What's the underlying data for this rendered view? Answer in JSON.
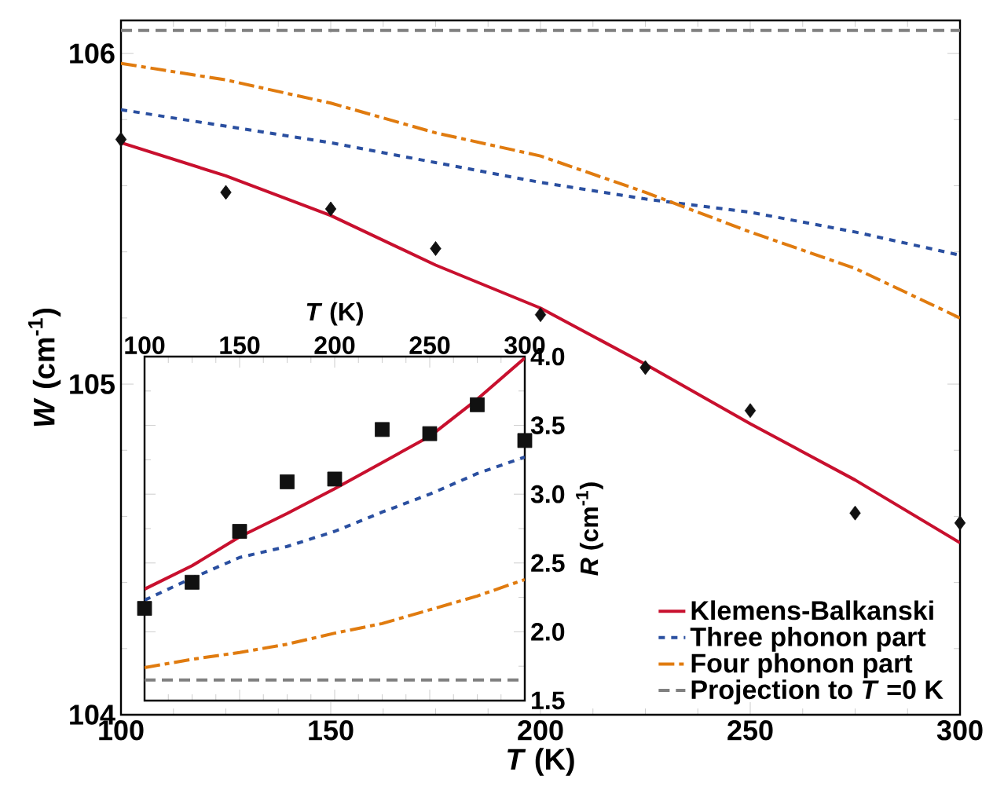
{
  "chart_data": [
    {
      "type": "line",
      "xlabel": "*T* (K)",
      "ylabel": "*W* (cm$^{-1}$)",
      "x": [
        100,
        125,
        150,
        175,
        200,
        225,
        250,
        275,
        300
      ],
      "xlim": [
        100,
        300
      ],
      "xticks": [
        100,
        150,
        200,
        250,
        300
      ],
      "ylim": [
        104,
        106.1
      ],
      "yticks": [
        104,
        105,
        106
      ],
      "legend": "bottom right",
      "grid": false,
      "series": [
        {
          "type": "scatter",
          "marker": "diamond",
          "color": "#111111",
          "values": [
            105.74,
            105.58,
            105.53,
            105.41,
            105.21,
            105.05,
            104.92,
            104.61,
            104.58
          ]
        },
        {
          "name": "Klemens-Balkanski",
          "color": "#c8102e",
          "line_style": "solid",
          "values": [
            105.73,
            105.63,
            105.51,
            105.36,
            105.23,
            105.06,
            104.88,
            104.71,
            104.52
          ]
        },
        {
          "name": "Three phonon part",
          "color": "#2a4fa0",
          "line_style": "dotted",
          "values": [
            105.83,
            105.78,
            105.73,
            105.67,
            105.61,
            105.56,
            105.52,
            105.46,
            105.39
          ]
        },
        {
          "name": "Four phonon part",
          "color": "#e07b0f",
          "line_style": "dashdot",
          "values": [
            105.97,
            105.92,
            105.85,
            105.76,
            105.69,
            105.58,
            105.46,
            105.35,
            105.2
          ]
        },
        {
          "name": "Projection to *T* =0 K",
          "color": "#808080",
          "line_style": "dashed",
          "values": [
            106.07,
            106.07,
            106.07,
            106.07,
            106.07,
            106.07,
            106.07,
            106.07,
            106.07
          ]
        }
      ]
    },
    {
      "type": "line",
      "xlabel": "*T* (K)",
      "ylabel": "*R* (cm$^{-1}$)",
      "x": [
        100,
        125,
        150,
        175,
        200,
        225,
        250,
        275,
        300
      ],
      "xlim": [
        100,
        300
      ],
      "xticks": [
        100,
        150,
        200,
        250,
        300
      ],
      "ylim": [
        1.5,
        4.0
      ],
      "yticks": [
        {
          "value": 1.5,
          "label": "1.5"
        },
        {
          "value": 2.0,
          "label": "2.0"
        },
        {
          "value": 2.5,
          "label": "2.5"
        },
        {
          "value": 3.0,
          "label": "3.0"
        },
        {
          "value": 3.5,
          "label": "3.5"
        },
        {
          "value": 4.0,
          "label": "4.0"
        }
      ],
      "legend": false,
      "grid": false,
      "series": [
        {
          "type": "scatter",
          "marker": "square",
          "color": "#111111",
          "values": [
            2.17,
            2.36,
            2.73,
            3.09,
            3.11,
            3.47,
            3.44,
            3.65,
            3.39
          ]
        },
        {
          "color": "#c8102e",
          "line_style": "solid",
          "values": [
            2.31,
            2.48,
            2.69,
            2.86,
            3.04,
            3.23,
            3.42,
            3.69,
            3.99
          ]
        },
        {
          "color": "#2a4fa0",
          "line_style": "dotted",
          "values": [
            2.23,
            2.39,
            2.54,
            2.62,
            2.73,
            2.87,
            3.0,
            3.15,
            3.27
          ]
        },
        {
          "color": "#e07b0f",
          "line_style": "dashdot",
          "values": [
            1.74,
            1.8,
            1.85,
            1.91,
            1.99,
            2.06,
            2.16,
            2.26,
            2.38
          ]
        },
        {
          "color": "#808080",
          "line_style": "dashed",
          "values": [
            1.65,
            1.65,
            1.65,
            1.65,
            1.65,
            1.65,
            1.65,
            1.65,
            1.65
          ]
        }
      ]
    }
  ]
}
